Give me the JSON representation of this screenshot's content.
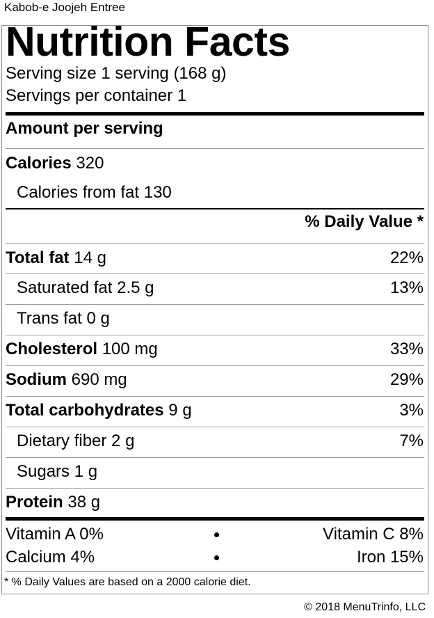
{
  "dish_name": "Kabob-e Joojeh Entree",
  "title": "Nutrition Facts",
  "serving_size": "Serving size 1 serving (168 g)",
  "servings_per_container": "Servings per container 1",
  "amount_per_serving": "Amount per serving",
  "calories": {
    "label": "Calories",
    "value": "320"
  },
  "calories_from_fat": "Calories from fat 130",
  "daily_value_header": "% Daily Value *",
  "nutrients": [
    {
      "label": "Total fat",
      "amount": "14 g",
      "dv": "22%"
    },
    {
      "label": "Saturated fat",
      "amount": "2.5 g",
      "dv": "13%"
    },
    {
      "label": "Trans fat",
      "amount": "0 g",
      "dv": ""
    },
    {
      "label": "Cholesterol",
      "amount": "100 mg",
      "dv": "33%"
    },
    {
      "label": "Sodium",
      "amount": "690 mg",
      "dv": "29%"
    },
    {
      "label": "Total carbohydrates",
      "amount": "9 g",
      "dv": "3%"
    },
    {
      "label": "Dietary fiber",
      "amount": "2 g",
      "dv": "7%"
    },
    {
      "label": "Sugars",
      "amount": "1 g",
      "dv": ""
    },
    {
      "label": "Protein",
      "amount": "38 g",
      "dv": ""
    }
  ],
  "vitamins": [
    {
      "left": "Vitamin A 0%",
      "right": "Vitamin C 8%"
    },
    {
      "left": "Calcium 4%",
      "right": "Iron 15%"
    }
  ],
  "footnote": "* % Daily Values are based on a 2000 calorie diet.",
  "copyright": "© 2018 MenuTrinfo, LLC"
}
